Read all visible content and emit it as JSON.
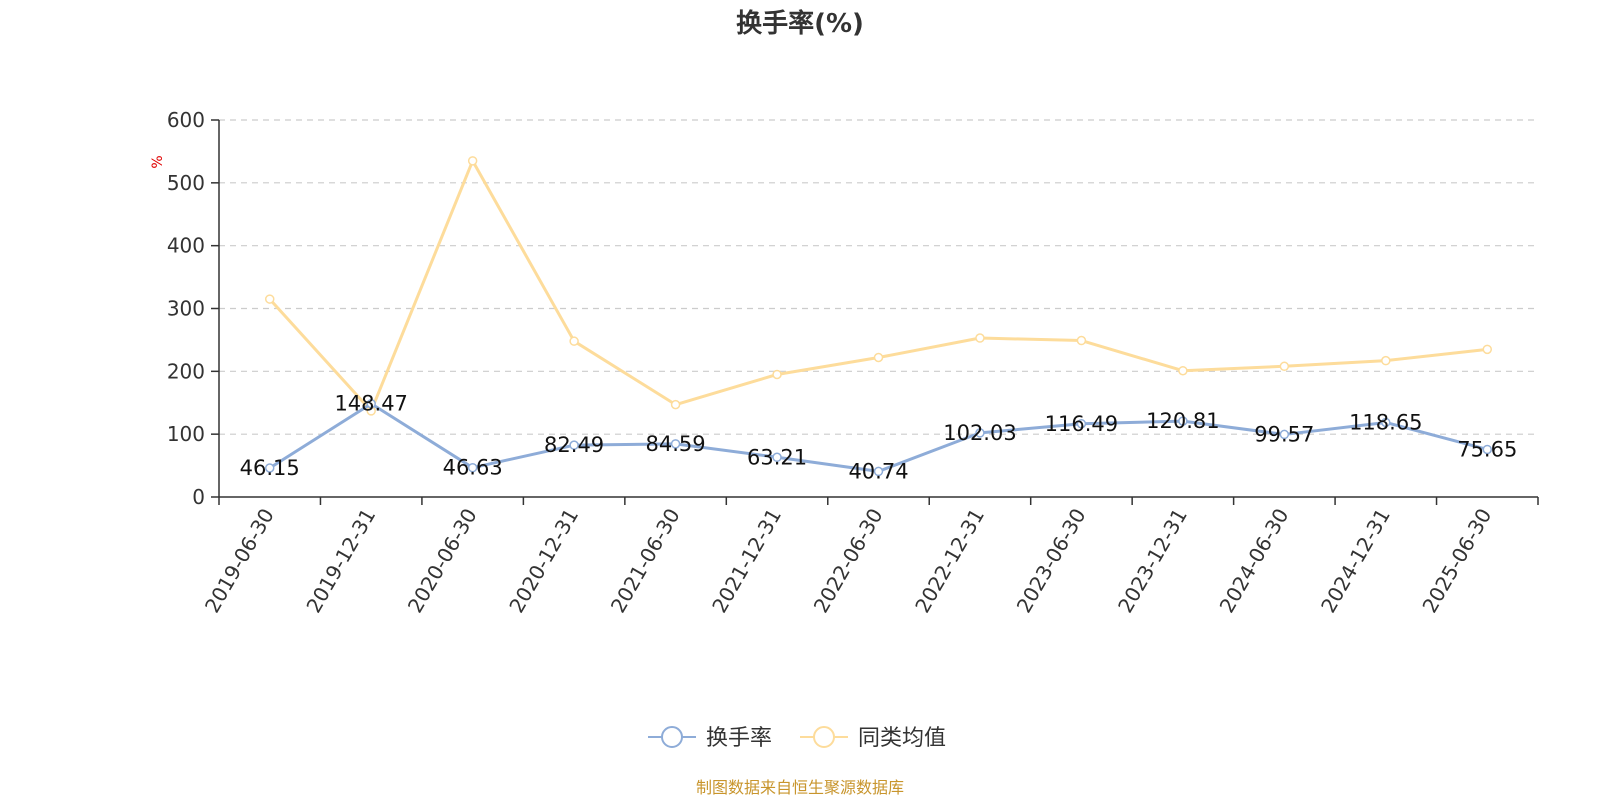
{
  "chart_data": {
    "type": "line",
    "title": "换手率(%)",
    "ylabel": "%",
    "ylim": [
      0,
      600
    ],
    "yticks": [
      0,
      100,
      200,
      300,
      400,
      500,
      600
    ],
    "grid": true,
    "legend_position": "bottom-center",
    "categories": [
      "2019-06-30",
      "2019-12-31",
      "2020-06-30",
      "2020-12-31",
      "2021-06-30",
      "2021-12-31",
      "2022-06-30",
      "2022-12-31",
      "2023-06-30",
      "2023-12-31",
      "2024-06-30",
      "2024-12-31",
      "2025-06-30"
    ],
    "series": [
      {
        "name": "换手率",
        "color": "#8eacd8",
        "values": [
          46.15,
          148.47,
          46.63,
          82.49,
          84.59,
          63.21,
          40.74,
          102.03,
          116.49,
          120.81,
          99.57,
          118.65,
          75.65
        ],
        "labels": [
          "46.15",
          "148.47",
          "46.63",
          "82.49",
          "84.59",
          "63.21",
          "40.74",
          "102.03",
          "116.49",
          "120.81",
          "99.57",
          "118.65",
          "75.65"
        ]
      },
      {
        "name": "同类均值",
        "color": "#fddc9b",
        "values": [
          315,
          137,
          535,
          248,
          147,
          195,
          222,
          253,
          249,
          201,
          208,
          217,
          235
        ]
      }
    ]
  },
  "source": "制图数据来自恒生聚源数据库"
}
